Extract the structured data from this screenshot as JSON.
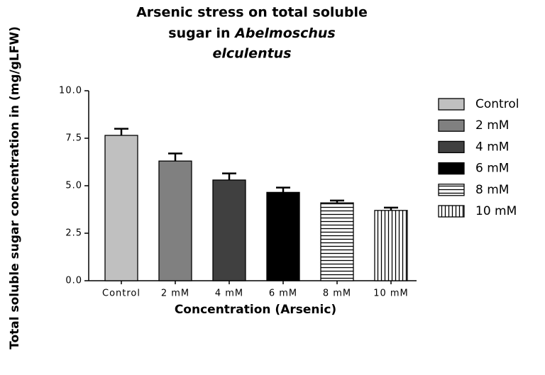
{
  "chart_data": {
    "type": "bar",
    "title": [
      "Arsenic stress on total soluble",
      "sugar in",
      "Abelmoschus",
      "elculentus"
    ],
    "x_label": "Concentration (Arsenic)",
    "y_label": "Total soluble sugar concentration in (mg/gLFW)",
    "categories": [
      "Control",
      "2 mM",
      "4 mM",
      "6 mM",
      "8 mM",
      "10 mM"
    ],
    "values": [
      7.65,
      6.3,
      5.3,
      4.65,
      4.1,
      3.7
    ],
    "errors": [
      0.35,
      0.4,
      0.35,
      0.25,
      0.12,
      0.15
    ],
    "fills": [
      "#c0c0c0",
      "#808080",
      "#404040",
      "#000000",
      "horizontal-lines",
      "vertical-lines"
    ],
    "ylim": [
      0,
      10
    ],
    "yticks": [
      {
        "value": 0,
        "label": "0.0"
      },
      {
        "value": 2.5,
        "label": "2.5"
      },
      {
        "value": 5,
        "label": "5.0"
      },
      {
        "value": 7.5,
        "label": "7.5"
      },
      {
        "value": 10,
        "label": "10.0"
      }
    ],
    "legend": "right"
  }
}
